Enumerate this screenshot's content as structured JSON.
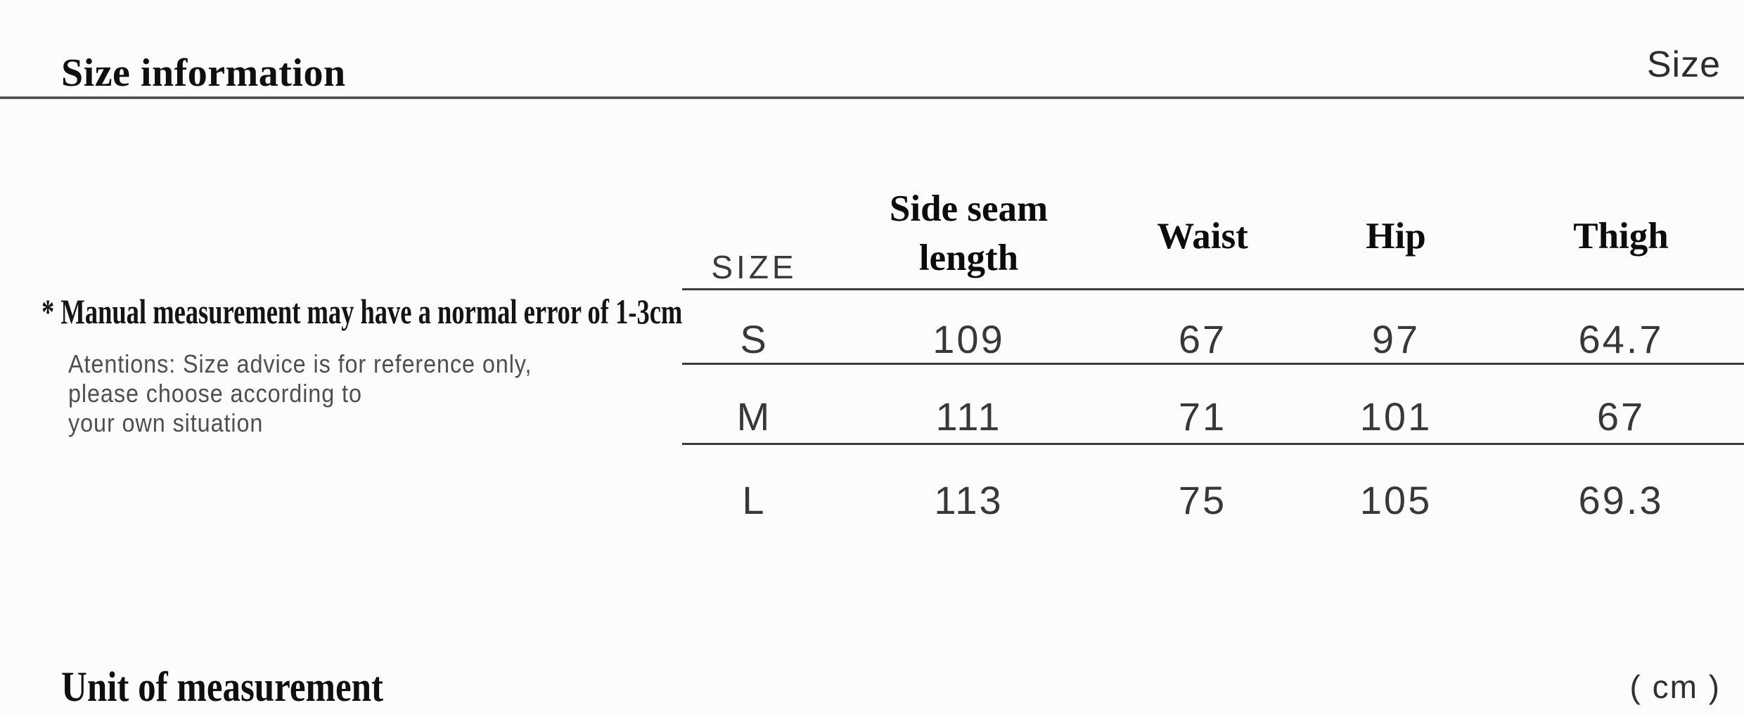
{
  "header": {
    "title": "Size information",
    "corner_label": "Size"
  },
  "notes": {
    "measurement_note": "* Manual measurement may have a normal error of 1-3cm",
    "attention_line1": "Atentions: Size advice is for reference only,",
    "attention_line2": "please choose according to",
    "attention_line3": "your own situation"
  },
  "size_table": {
    "col_size": "SIZE",
    "col_side_seam": "Side seam length",
    "col_waist": "Waist",
    "col_hip": "Hip",
    "col_thigh": "Thigh",
    "rows": [
      {
        "size": "S",
        "side_seam": "109",
        "waist": "67",
        "hip": "97",
        "thigh": "64.7"
      },
      {
        "size": "M",
        "side_seam": "111",
        "waist": "71",
        "hip": "101",
        "thigh": "67"
      },
      {
        "size": "L",
        "side_seam": "113",
        "waist": "75",
        "hip": "105",
        "thigh": "69.3"
      }
    ]
  },
  "footer": {
    "unit_label": "Unit of measurement",
    "unit_value": "( cm )"
  },
  "colors": {
    "background": "#fcfcfa",
    "rule_dark": "#3c3c3c",
    "text_black": "#0f0f0f",
    "text_gray": "#4f4f4f"
  }
}
